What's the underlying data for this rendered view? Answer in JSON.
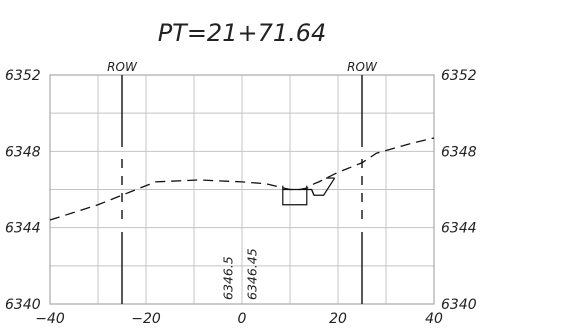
{
  "title": "PT=21+71.64",
  "chart_data": {
    "type": "line",
    "xlim": [
      -40,
      40
    ],
    "ylim": [
      6340,
      6352
    ],
    "x_ticks": [
      -40,
      -20,
      0,
      20,
      40
    ],
    "x_tick_labels": [
      "−40",
      "−20",
      "0",
      "20",
      "40"
    ],
    "y_ticks": [
      6340,
      6344,
      6348,
      6352
    ],
    "y_tick_labels": [
      "6340",
      "6344",
      "6348",
      "6352"
    ],
    "grid": true,
    "row_lines": [
      {
        "label": "ROW",
        "x": -25
      },
      {
        "label": "ROW",
        "x": 25
      }
    ],
    "ground_profile": [
      [
        -40,
        6344.4
      ],
      [
        -30,
        6345.2
      ],
      [
        -25,
        6345.7
      ],
      [
        -18,
        6346.4
      ],
      [
        -9,
        6346.5
      ],
      [
        0,
        6346.4
      ],
      [
        5,
        6346.3
      ],
      [
        10,
        6346.0
      ],
      [
        12,
        6346.0
      ],
      [
        14,
        6346.1
      ],
      [
        15,
        6346.3
      ],
      [
        16,
        6346.4
      ],
      [
        20,
        6346.9
      ],
      [
        25,
        6347.4
      ],
      [
        28,
        6347.9
      ],
      [
        35,
        6348.4
      ],
      [
        40,
        6348.7
      ]
    ],
    "template_sections": [
      [
        [
          8.5,
          6346.2
        ],
        [
          8.5,
          6345.2
        ],
        [
          13.5,
          6345.2
        ],
        [
          13.5,
          6346.2
        ]
      ],
      [
        [
          8.5,
          6346.0
        ],
        [
          14.5,
          6346.0
        ],
        [
          15.0,
          6345.7
        ],
        [
          17.0,
          6345.7
        ],
        [
          19.3,
          6346.6
        ]
      ],
      [
        [
          14.5,
          6346.0
        ],
        [
          15.0,
          6345.7
        ]
      ],
      [
        [
          17.5,
          6346.6
        ],
        [
          19.3,
          6346.6
        ]
      ]
    ],
    "vertical_labels": [
      {
        "text": "6346.5",
        "x": -2
      },
      {
        "text": "6346.45",
        "x": 3
      }
    ]
  }
}
